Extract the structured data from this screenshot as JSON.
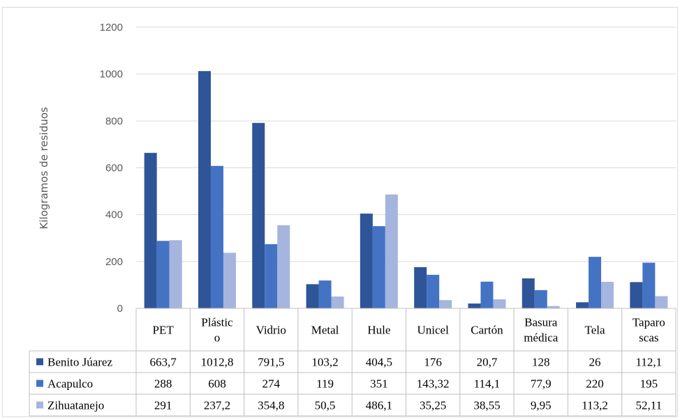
{
  "chart_data": {
    "type": "bar",
    "title": "",
    "xlabel": "",
    "ylabel": "Kilogramos de residuos",
    "ylim": [
      0,
      1200
    ],
    "yticks": [
      0,
      200,
      400,
      600,
      800,
      1000,
      1200
    ],
    "grid": true,
    "legend": "data-table",
    "categories": [
      [
        "PET"
      ],
      [
        "Plástic",
        "o"
      ],
      [
        "Vidrio"
      ],
      [
        "Metal"
      ],
      [
        "Hule"
      ],
      [
        "Unicel"
      ],
      [
        "Cartón"
      ],
      [
        "Basura",
        "médica"
      ],
      [
        "Tela"
      ],
      [
        "Taparo",
        "scas"
      ]
    ],
    "series": [
      {
        "name": "Benito Júarez",
        "color": "#2e5597",
        "values": [
          663.7,
          1012.8,
          791.5,
          103.2,
          404.5,
          176,
          20.7,
          128,
          26,
          112.1
        ],
        "labels": [
          "663,7",
          "1012,8",
          "791,5",
          "103,2",
          "404,5",
          "176",
          "20,7",
          "128",
          "26",
          "112,1"
        ]
      },
      {
        "name": "Acapulco",
        "color": "#4473c4",
        "values": [
          288,
          608,
          274,
          119,
          351,
          143.32,
          114.1,
          77.9,
          220,
          195
        ],
        "labels": [
          "288",
          "608",
          "274",
          "119",
          "351",
          "143,32",
          "114,1",
          "77,9",
          "220",
          "195"
        ]
      },
      {
        "name": "Zihuatanejo",
        "color": "#a5b5dd",
        "values": [
          291,
          237.2,
          354.8,
          50.5,
          486.1,
          35.25,
          38.55,
          9.95,
          113.2,
          52.11
        ],
        "labels": [
          "291",
          "237,2",
          "354,8",
          "50,5",
          "486,1",
          "35,25",
          "38,55",
          "9,95",
          "113,2",
          "52,11"
        ]
      }
    ]
  }
}
